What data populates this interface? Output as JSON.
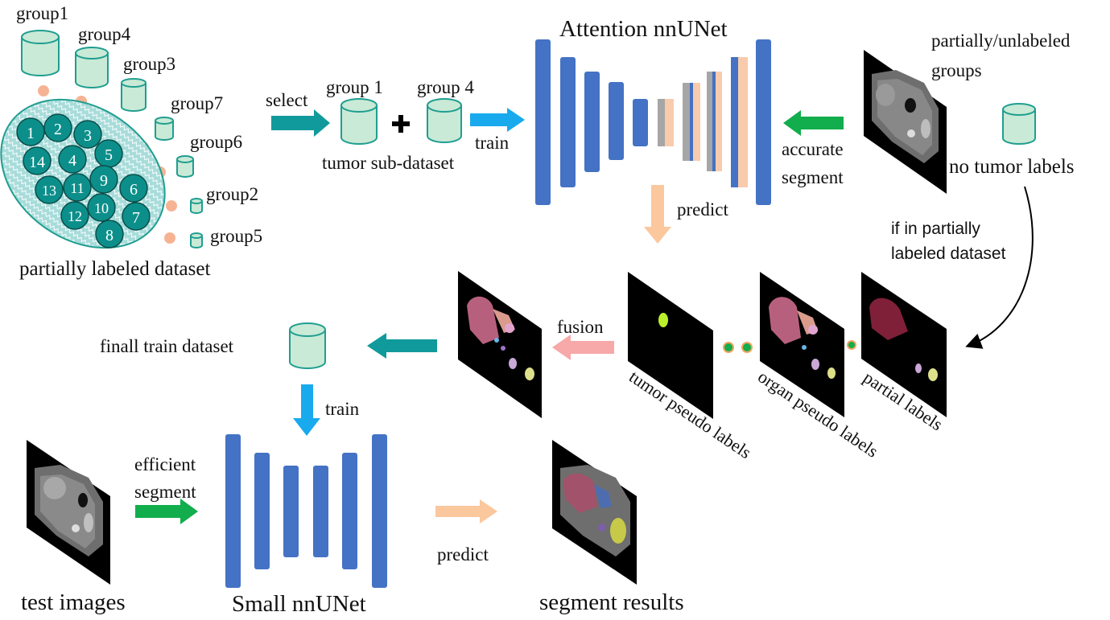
{
  "colors": {
    "cylinder_fill": "#c9ead6",
    "cylinder_stroke": "#1f9e90",
    "dot": "#f6b394",
    "teal_arrow": "#119a9b",
    "blue_arrow": "#19aaee",
    "green_arrow": "#12ad4c",
    "peach_arrow": "#fbc79d",
    "pink_arrow": "#f7a8a8",
    "unet_blue": "#4472c4",
    "unet_gray": "#a6a6a6",
    "unet_peach": "#f8cbad",
    "ellipse_fill": "#a7dcda",
    "circle_fill": "#0c8f8a"
  },
  "groups": {
    "g1": "group1",
    "g4": "group4",
    "g3": "group3",
    "g7": "group7",
    "g6": "group6",
    "g2": "group2",
    "g5": "group5"
  },
  "dataset_numbers": [
    "1",
    "2",
    "3",
    "14",
    "4",
    "5",
    "13",
    "11",
    "9",
    "6",
    "12",
    "10",
    "7",
    "8"
  ],
  "partially_labeled_dataset": "partially labeled dataset",
  "select": "select",
  "group_1": "group 1",
  "group_4": "group 4",
  "tumor_sub_dataset": "tumor sub-dataset",
  "train": "train",
  "attention_nnunet": "Attention nnUNet",
  "partially_unlabeled_groups_line1": "partially/unlabeled",
  "partially_unlabeled_groups_line2": "groups",
  "no_tumor_labels": "no tumor labels",
  "accurate": "accurate",
  "segment": "segment",
  "predict": "predict",
  "if_in_partially": "if in partially",
  "labeled_dataset": "labeled dataset",
  "fusion": "fusion",
  "finall_train_dataset": "finall train dataset",
  "tumor_pseudo_labels": "tumor pseudo labels",
  "organ_pseudo_labels": "organ pseudo labels",
  "partial_labels": "partial labels",
  "train_bottom": "train",
  "efficient": "efficient",
  "segment_bottom": "segment",
  "test_images": "test images",
  "small_nnunet": "Small nnUNet",
  "predict_bottom": "predict",
  "segment_results": "segment results"
}
